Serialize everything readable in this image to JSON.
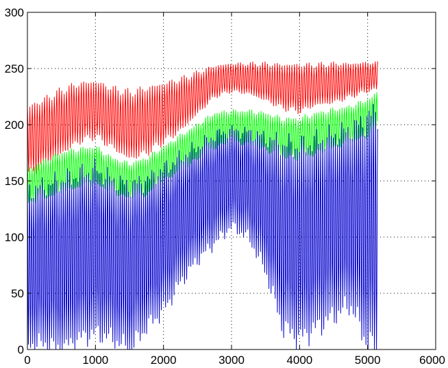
{
  "chart_data": {
    "type": "line",
    "title": "",
    "xlabel": "",
    "ylabel": "",
    "xlim": [
      0,
      6000
    ],
    "ylim": [
      0,
      300
    ],
    "grid": true,
    "legend": "none",
    "x_ticks": [
      0,
      1000,
      2000,
      3000,
      4000,
      5000,
      6000
    ],
    "y_ticks": [
      0,
      50,
      100,
      150,
      200,
      250,
      300
    ],
    "x_tick_labels": [
      "0",
      "1000",
      "2000",
      "3000",
      "4000",
      "5000",
      "6000"
    ],
    "y_tick_labels": [
      "0",
      "50",
      "100",
      "150",
      "200",
      "250",
      "300"
    ],
    "series": [
      {
        "color": "#ff0000",
        "x": [
          0,
          250,
          500,
          750,
          1000,
          1250,
          1500,
          1750,
          2000,
          2250,
          2500,
          2750,
          3000,
          3250,
          3500,
          3750,
          4000,
          4250,
          4500,
          4750,
          5000,
          5150
        ],
        "upper": [
          215,
          222,
          230,
          236,
          238,
          232,
          228,
          232,
          236,
          240,
          246,
          252,
          254,
          254,
          254,
          253,
          253,
          253,
          254,
          254,
          255,
          255
        ],
        "lower": [
          155,
          165,
          175,
          185,
          190,
          180,
          170,
          175,
          185,
          195,
          210,
          225,
          230,
          228,
          222,
          215,
          212,
          218,
          220,
          225,
          230,
          232
        ]
      },
      {
        "color": "#00ff00",
        "x": [
          0,
          250,
          500,
          750,
          1000,
          1250,
          1500,
          1750,
          2000,
          2250,
          2500,
          2750,
          3000,
          3250,
          3500,
          3750,
          4000,
          4250,
          4500,
          4750,
          5000,
          5150
        ],
        "upper": [
          160,
          168,
          175,
          178,
          180,
          170,
          165,
          170,
          180,
          190,
          200,
          210,
          212,
          212,
          210,
          205,
          205,
          210,
          213,
          216,
          222,
          228
        ],
        "lower": [
          130,
          135,
          140,
          145,
          148,
          140,
          135,
          138,
          150,
          160,
          170,
          180,
          185,
          183,
          178,
          172,
          170,
          175,
          180,
          185,
          190,
          195
        ]
      },
      {
        "color": "#0000cc",
        "x": [
          0,
          250,
          500,
          750,
          1000,
          1250,
          1500,
          1750,
          2000,
          2250,
          2500,
          2750,
          3000,
          3250,
          3500,
          3750,
          4000,
          4250,
          4500,
          4750,
          5000,
          5150
        ],
        "upper": [
          140,
          145,
          150,
          155,
          160,
          150,
          145,
          150,
          160,
          170,
          180,
          190,
          195,
          193,
          188,
          182,
          180,
          185,
          190,
          195,
          205,
          212
        ],
        "lower": [
          5,
          5,
          0,
          10,
          15,
          10,
          0,
          20,
          35,
          60,
          80,
          95,
          110,
          100,
          70,
          20,
          10,
          20,
          30,
          40,
          5,
          0
        ]
      }
    ]
  }
}
